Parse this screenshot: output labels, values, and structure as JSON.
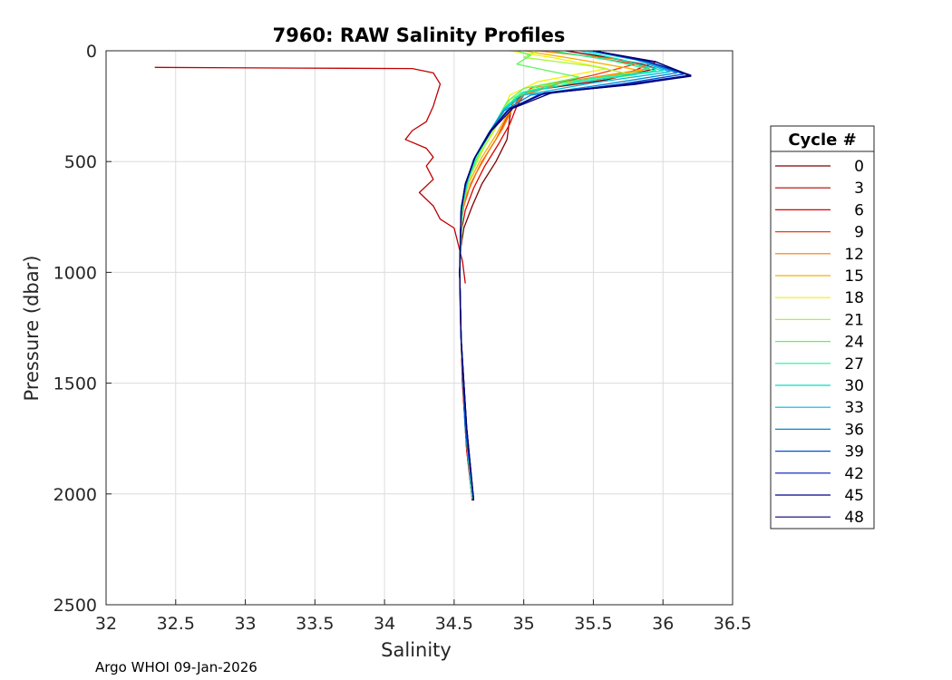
{
  "chart_data": {
    "type": "line",
    "title": "7960: RAW Salinity Profiles",
    "xlabel": "Salinity",
    "ylabel": "Pressure (dbar)",
    "xlim": [
      32,
      36.5
    ],
    "ylim": [
      0,
      2500
    ],
    "y_reversed": true,
    "grid": true,
    "x_ticks": [
      32,
      32.5,
      33,
      33.5,
      34,
      34.5,
      35,
      35.5,
      36,
      36.5
    ],
    "x_tick_labels": [
      "32",
      "32.5",
      "33",
      "33.5",
      "34",
      "34.5",
      "35",
      "35.5",
      "36",
      "36.5"
    ],
    "y_ticks": [
      0,
      500,
      1000,
      1500,
      2000,
      2500
    ],
    "y_tick_labels": [
      "0",
      "500",
      "1000",
      "1500",
      "2000",
      "2500"
    ],
    "legend": {
      "title": "Cycle #",
      "placement": "outside-right",
      "entries": [
        {
          "label": "0",
          "color": "#800000"
        },
        {
          "label": "3",
          "color": "#b00000"
        },
        {
          "label": "6",
          "color": "#dd0000"
        },
        {
          "label": "9",
          "color": "#f53a0a"
        },
        {
          "label": "12",
          "color": "#f57a00"
        },
        {
          "label": "15",
          "color": "#f5b000"
        },
        {
          "label": "18",
          "color": "#f5f000"
        },
        {
          "label": "21",
          "color": "#a8f53a"
        },
        {
          "label": "24",
          "color": "#5ef55e"
        },
        {
          "label": "27",
          "color": "#1af59a"
        },
        {
          "label": "30",
          "color": "#00e0c8"
        },
        {
          "label": "33",
          "color": "#00b8e0"
        },
        {
          "label": "36",
          "color": "#0088d0"
        },
        {
          "label": "39",
          "color": "#0050d0"
        },
        {
          "label": "42",
          "color": "#001ab0"
        },
        {
          "label": "45",
          "color": "#00008a"
        },
        {
          "label": "48",
          "color": "#000070"
        }
      ]
    },
    "series": [
      {
        "name": "Cycle 0",
        "color": "#800000",
        "salinity": [
          35.3,
          35.6,
          35.85,
          35.95,
          35.6,
          35.05,
          34.92,
          34.9,
          34.88,
          34.8,
          34.7,
          34.63,
          34.57,
          34.545,
          34.54,
          34.545,
          34.56,
          34.59,
          34.63
        ],
        "pressure": [
          0,
          30,
          60,
          80,
          130,
          180,
          230,
          300,
          400,
          500,
          600,
          700,
          800,
          900,
          1000,
          1200,
          1500,
          1800,
          2030
        ]
      },
      {
        "name": "Cycle 3",
        "color": "#c00000",
        "salinity": [
          32.35,
          33.4,
          34.2,
          34.35,
          34.4,
          34.35,
          34.3,
          34.2,
          34.15,
          34.3,
          34.35,
          34.3,
          34.35,
          34.25,
          34.35,
          34.4,
          34.5,
          34.56,
          34.58
        ],
        "pressure": [
          75,
          78,
          80,
          100,
          150,
          250,
          320,
          360,
          400,
          440,
          480,
          520,
          580,
          640,
          700,
          760,
          800,
          950,
          1050
        ]
      },
      {
        "name": "Cycle 6",
        "color": "#dd0000",
        "salinity": [
          35.5,
          35.95,
          35.75,
          35.2,
          35.0,
          34.95,
          34.9,
          34.82,
          34.72,
          34.64,
          34.58,
          34.55,
          34.54,
          34.545,
          34.56,
          34.59,
          34.63
        ],
        "pressure": [
          0,
          50,
          100,
          150,
          200,
          250,
          330,
          420,
          520,
          620,
          720,
          820,
          1000,
          1200,
          1500,
          1800,
          2020
        ]
      },
      {
        "name": "Cycle 9",
        "color": "#f53a0a",
        "salinity": [
          35.2,
          35.8,
          35.5,
          35.05,
          34.95,
          34.88,
          34.8,
          34.7,
          34.62,
          34.57,
          34.545,
          34.54,
          34.55,
          34.58,
          34.63
        ],
        "pressure": [
          0,
          60,
          110,
          170,
          230,
          300,
          400,
          500,
          600,
          700,
          800,
          1000,
          1300,
          1700,
          2020
        ]
      },
      {
        "name": "Cycle 12",
        "color": "#f57a00",
        "salinity": [
          35.1,
          35.7,
          35.9,
          35.3,
          35.0,
          34.92,
          34.85,
          34.75,
          34.66,
          34.59,
          34.55,
          34.54,
          34.55,
          34.58,
          34.63
        ],
        "pressure": [
          0,
          40,
          80,
          140,
          200,
          260,
          350,
          450,
          550,
          650,
          750,
          1000,
          1300,
          1700,
          2020
        ]
      },
      {
        "name": "Cycle 15",
        "color": "#f5b000",
        "salinity": [
          35.0,
          35.4,
          35.85,
          35.2,
          34.95,
          34.88,
          34.8,
          34.7,
          34.61,
          34.56,
          34.54,
          34.55,
          34.58,
          34.63
        ],
        "pressure": [
          0,
          40,
          90,
          150,
          210,
          290,
          380,
          480,
          590,
          700,
          1000,
          1300,
          1700,
          2020
        ]
      },
      {
        "name": "Cycle 18",
        "color": "#f5f000",
        "salinity": [
          34.9,
          35.2,
          35.6,
          35.1,
          34.9,
          34.85,
          34.78,
          34.68,
          34.6,
          34.56,
          34.54,
          34.55,
          34.58,
          34.63
        ],
        "pressure": [
          0,
          30,
          80,
          140,
          200,
          280,
          370,
          470,
          580,
          700,
          1000,
          1300,
          1700,
          2020
        ]
      },
      {
        "name": "Cycle 21",
        "color": "#a8f53a",
        "salinity": [
          35.1,
          35.0,
          35.5,
          35.8,
          35.1,
          34.9,
          34.82,
          34.72,
          34.62,
          34.56,
          34.54,
          34.55,
          34.58,
          34.63
        ],
        "pressure": [
          0,
          30,
          70,
          110,
          160,
          220,
          320,
          430,
          560,
          700,
          1000,
          1300,
          1700,
          2020
        ]
      },
      {
        "name": "Cycle 24",
        "color": "#5ef55e",
        "salinity": [
          34.95,
          35.05,
          34.95,
          35.4,
          35.0,
          34.88,
          34.8,
          34.7,
          34.61,
          34.56,
          34.54,
          34.55,
          34.58,
          34.63
        ],
        "pressure": [
          0,
          20,
          60,
          120,
          170,
          230,
          320,
          430,
          560,
          700,
          1000,
          1300,
          1700,
          2020
        ]
      },
      {
        "name": "Cycle 27",
        "color": "#1af59a",
        "salinity": [
          35.2,
          35.6,
          35.95,
          35.3,
          34.98,
          34.86,
          34.78,
          34.68,
          34.6,
          34.56,
          34.54,
          34.55,
          34.58,
          34.63
        ],
        "pressure": [
          0,
          40,
          90,
          140,
          190,
          260,
          350,
          460,
          580,
          700,
          1000,
          1300,
          1700,
          2020
        ]
      },
      {
        "name": "Cycle 30",
        "color": "#00e0c8",
        "salinity": [
          35.4,
          35.7,
          36.0,
          35.4,
          35.0,
          34.86,
          34.76,
          34.66,
          34.59,
          34.55,
          34.54,
          34.55,
          34.58,
          34.63
        ],
        "pressure": [
          0,
          40,
          90,
          140,
          190,
          260,
          360,
          470,
          590,
          700,
          1000,
          1300,
          1700,
          2020
        ]
      },
      {
        "name": "Cycle 33",
        "color": "#00b8e0",
        "salinity": [
          35.45,
          35.8,
          36.05,
          35.5,
          35.0,
          34.85,
          34.75,
          34.65,
          34.59,
          34.55,
          34.54,
          34.55,
          34.58,
          34.64
        ],
        "pressure": [
          0,
          40,
          95,
          145,
          200,
          270,
          370,
          480,
          600,
          720,
          1000,
          1300,
          1700,
          2020
        ]
      },
      {
        "name": "Cycle 36",
        "color": "#0088d0",
        "salinity": [
          35.5,
          35.85,
          36.1,
          35.6,
          35.05,
          34.86,
          34.74,
          34.64,
          34.58,
          34.55,
          34.54,
          34.55,
          34.58,
          34.64
        ],
        "pressure": [
          0,
          45,
          100,
          150,
          200,
          270,
          380,
          490,
          610,
          720,
          1000,
          1300,
          1700,
          2025
        ]
      },
      {
        "name": "Cycle 39",
        "color": "#0050d0",
        "salinity": [
          35.5,
          35.9,
          36.15,
          35.7,
          35.1,
          34.88,
          34.75,
          34.64,
          34.58,
          34.55,
          34.54,
          34.55,
          34.58,
          34.64
        ],
        "pressure": [
          0,
          50,
          105,
          150,
          200,
          270,
          370,
          490,
          610,
          720,
          1000,
          1300,
          1700,
          2025
        ]
      },
      {
        "name": "Cycle 42",
        "color": "#001ab0",
        "salinity": [
          35.5,
          35.9,
          36.2,
          35.75,
          35.15,
          34.9,
          34.76,
          34.65,
          34.58,
          34.55,
          34.54,
          34.55,
          34.59,
          34.64
        ],
        "pressure": [
          0,
          50,
          110,
          150,
          190,
          260,
          360,
          480,
          600,
          720,
          1000,
          1300,
          1700,
          2025
        ]
      },
      {
        "name": "Cycle 45",
        "color": "#00008a",
        "salinity": [
          35.5,
          35.95,
          36.2,
          35.8,
          35.15,
          34.9,
          34.76,
          34.65,
          34.58,
          34.55,
          34.54,
          34.55,
          34.59,
          34.64
        ],
        "pressure": [
          0,
          50,
          112,
          152,
          192,
          262,
          362,
          482,
          602,
          722,
          1000,
          1300,
          1700,
          2030
        ]
      },
      {
        "name": "Cycle 48",
        "color": "#000070",
        "salinity": [
          35.5,
          35.95,
          36.2,
          35.8,
          35.2,
          34.92,
          34.77,
          34.65,
          34.58,
          34.55,
          34.54,
          34.55,
          34.59,
          34.64
        ],
        "pressure": [
          0,
          50,
          115,
          150,
          190,
          260,
          360,
          480,
          600,
          720,
          1000,
          1300,
          1700,
          2030
        ]
      }
    ]
  },
  "footer_text": "Argo WHOI 09-Jan-2026"
}
